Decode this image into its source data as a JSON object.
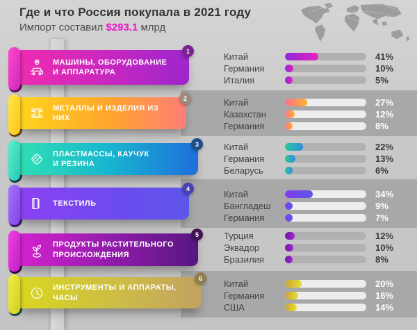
{
  "header": {
    "title": "Где и что Россия покупала в 2021 году",
    "subtitle_prefix": "Импорт составил ",
    "subtitle_value": "$293.1",
    "subtitle_suffix": " млрд",
    "accent_color": "#e618c6"
  },
  "map": {
    "label": "world-map",
    "land_color": "#9d9d9d",
    "route_color": "#e9e9e9"
  },
  "categories": [
    {
      "number": "1",
      "title": "МАШИНЫ, ОБОРУДОВАНИЕ\nИ АППАРАТУРА",
      "icon": "car-location-icon",
      "colors": {
        "banner": [
          "#f02cb0",
          "#c127c2 60%",
          "#9d26cc"
        ],
        "roll": [
          "#ff49d2",
          "#d026b8"
        ],
        "curl": "#6d1168",
        "badge": "#7c2193",
        "bar": [
          "#8c2ad8",
          "#e921c1"
        ]
      },
      "entries": [
        {
          "country": "Китай",
          "percent": "41%",
          "value": 41
        },
        {
          "country": "Германия",
          "percent": "10%",
          "value": 10
        },
        {
          "country": "Италия",
          "percent": "5%",
          "value": 5
        }
      ]
    },
    {
      "number": "2",
      "title": "МЕТАЛЛЫ И ИЗДЕЛИЯ ИЗ НИХ",
      "icon": "steel-beam-icon",
      "colors": {
        "banner": [
          "#ffd51d",
          "#ffa42c 55%",
          "#ff7e78"
        ],
        "roll": [
          "#ffe84a",
          "#ffc414"
        ],
        "curl": "#6e4c10",
        "badge": "#a18a7c",
        "bar": [
          "#fb7190",
          "#ffb32a"
        ]
      },
      "entries": [
        {
          "country": "Китай",
          "percent": "27%",
          "value": 27
        },
        {
          "country": "Казахстан",
          "percent": "12%",
          "value": 12
        },
        {
          "country": "Германия",
          "percent": "8%",
          "value": 8
        }
      ]
    },
    {
      "number": "3",
      "title": "ПЛАСТМАССЫ, КАУЧУК\nИ РЕЗИНА",
      "icon": "rubber-eraser-icon",
      "colors": {
        "banner": [
          "#2fe0b4",
          "#18b6cf 50%",
          "#1e6fdb"
        ],
        "roll": [
          "#5ff0cf",
          "#22c9b2"
        ],
        "curl": "#0c4452",
        "badge": "#1c4f8a",
        "bar": [
          "#2bc795",
          "#2e8fe2"
        ]
      },
      "entries": [
        {
          "country": "Китай",
          "percent": "22%",
          "value": 22
        },
        {
          "country": "Германия",
          "percent": "13%",
          "value": 13
        },
        {
          "country": "Беларусь",
          "percent": "6%",
          "value": 6
        }
      ]
    },
    {
      "number": "4",
      "title": "ТЕКСТИЛЬ",
      "icon": "fabric-roll-icon",
      "colors": {
        "banner": [
          "#8c41f2",
          "#6b4bee 60%",
          "#5c56e8"
        ],
        "roll": [
          "#a975fa",
          "#8040ea"
        ],
        "curl": "#372076",
        "badge": "#4a41b5",
        "bar": [
          "#813bee",
          "#5d55e8"
        ]
      },
      "entries": [
        {
          "country": "Китай",
          "percent": "34%",
          "value": 34
        },
        {
          "country": "Бангладеш",
          "percent": "9%",
          "value": 9
        },
        {
          "country": "Германия",
          "percent": "7%",
          "value": 7
        }
      ]
    },
    {
      "number": "5",
      "title": "ПРОДУКТЫ РАСТИТЕЛЬНОГО\nПРОИСХОЖДЕНИЯ",
      "icon": "plant-sprout-icon",
      "colors": {
        "banner": [
          "#d522cf",
          "#8d1ba8 55%",
          "#571680"
        ],
        "roll": [
          "#f23fe3",
          "#c01ec6"
        ],
        "curl": "#320d47",
        "badge": "#401455",
        "bar": [
          "#6d1b97",
          "#a424de"
        ]
      },
      "entries": [
        {
          "country": "Турция",
          "percent": "12%",
          "value": 12
        },
        {
          "country": "Эквадор",
          "percent": "10%",
          "value": 10
        },
        {
          "country": "Бразилия",
          "percent": "8%",
          "value": 8
        }
      ]
    },
    {
      "number": "6",
      "title": "ИНСТРУМЕНТЫ И АППАРАТЫ,\nЧАСЫ",
      "icon": "clock-icon",
      "colors": {
        "banner": [
          "#d8d71f",
          "#cdbc47 55%",
          "#c2a263"
        ],
        "roll": [
          "#eeee46",
          "#d2d01c"
        ],
        "curl": "#1c5560",
        "badge": "#8f7f4e",
        "bar": [
          "#c9a43b",
          "#e7e02c"
        ]
      },
      "entries": [
        {
          "country": "Китай",
          "percent": "20%",
          "value": 20
        },
        {
          "country": "Германия",
          "percent": "16%",
          "value": 16
        },
        {
          "country": "США",
          "percent": "14%",
          "value": 14
        }
      ]
    }
  ],
  "chart_data": {
    "type": "bar",
    "title": "Где и что Россия покупала в 2021 году",
    "subtitle": "Импорт составил $293.1 млрд",
    "unit": "%",
    "xlim": [
      0,
      100
    ],
    "orientation": "horizontal",
    "groups": [
      {
        "rank": 1,
        "category": "Машины, оборудование и аппаратура",
        "labels": [
          "Китай",
          "Германия",
          "Италия"
        ],
        "values": [
          41,
          10,
          5
        ]
      },
      {
        "rank": 2,
        "category": "Металлы и изделия из них",
        "labels": [
          "Китай",
          "Казахстан",
          "Германия"
        ],
        "values": [
          27,
          12,
          8
        ]
      },
      {
        "rank": 3,
        "category": "Пластмассы, каучук и резина",
        "labels": [
          "Китай",
          "Германия",
          "Беларусь"
        ],
        "values": [
          22,
          13,
          6
        ]
      },
      {
        "rank": 4,
        "category": "Текстиль",
        "labels": [
          "Китай",
          "Бангладеш",
          "Германия"
        ],
        "values": [
          34,
          9,
          7
        ]
      },
      {
        "rank": 5,
        "category": "Продукты растительного происхождения",
        "labels": [
          "Турция",
          "Эквадор",
          "Бразилия"
        ],
        "values": [
          12,
          10,
          8
        ]
      },
      {
        "rank": 6,
        "category": "Инструменты и аппараты, часы",
        "labels": [
          "Китай",
          "Германия",
          "США"
        ],
        "values": [
          20,
          16,
          14
        ]
      }
    ]
  }
}
